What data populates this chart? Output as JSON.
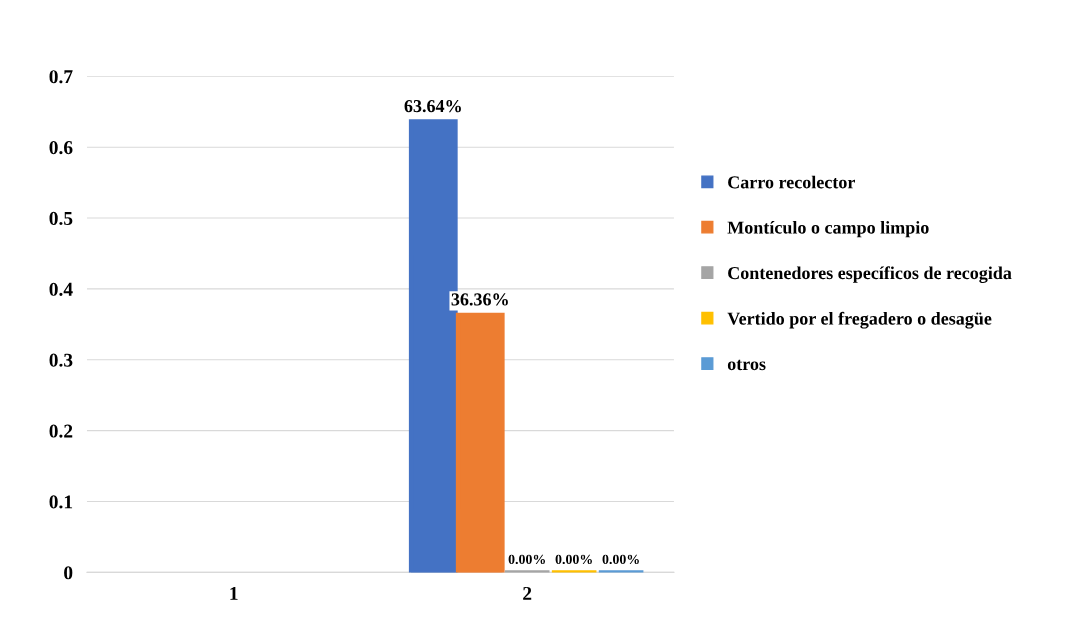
{
  "chart_data": {
    "type": "bar",
    "categories": [
      "1",
      "2"
    ],
    "series": [
      {
        "name": "Carro recolector",
        "color": "#4472c4",
        "values": [
          null,
          0.6364
        ],
        "value_labels": [
          null,
          "63.64%"
        ]
      },
      {
        "name": "Montículo o campo limpio",
        "color": "#ed7d31",
        "values": [
          null,
          0.3636
        ],
        "value_labels": [
          null,
          "36.36%"
        ]
      },
      {
        "name": "Contenedores específicos de recogida",
        "color": "#a5a5a5",
        "values": [
          null,
          0
        ],
        "value_labels": [
          null,
          "0.00%"
        ]
      },
      {
        "name": "Vertido por el fregadero o desagüe",
        "color": "#ffc000",
        "values": [
          null,
          0
        ],
        "value_labels": [
          null,
          "0.00%"
        ]
      },
      {
        "name": "otros",
        "color": "#5b9bd5",
        "values": [
          null,
          0
        ],
        "value_labels": [
          null,
          "0.00%"
        ]
      }
    ],
    "ylim": [
      0,
      0.7
    ],
    "yticks": [
      0,
      0.1,
      0.2,
      0.3,
      0.4,
      0.5,
      0.6,
      0.7
    ],
    "grid": "y",
    "legend": "right"
  }
}
